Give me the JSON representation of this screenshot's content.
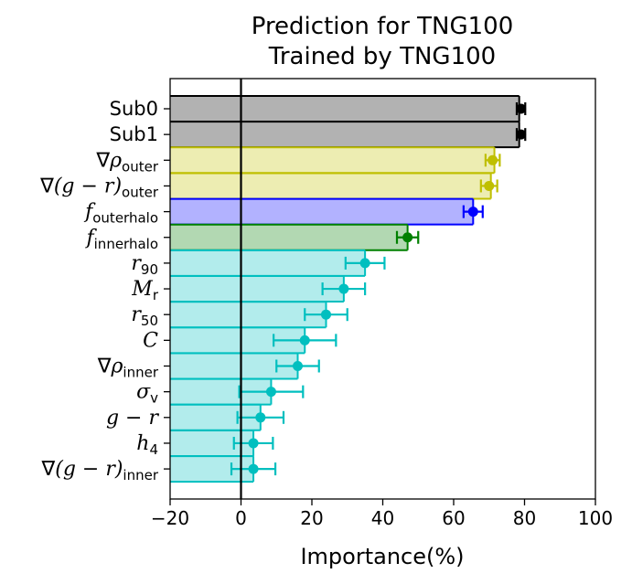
{
  "chart_data": {
    "type": "bar",
    "orientation": "horizontal",
    "title": [
      "Prediction for TNG100",
      "Trained by TNG100"
    ],
    "xlabel": "Importance(%)",
    "ylabel": "",
    "xlim": [
      -20,
      100
    ],
    "xticks": [
      -20,
      0,
      20,
      40,
      60,
      80,
      100
    ],
    "xtick_labels": [
      "−20",
      "0",
      "20",
      "40",
      "60",
      "80",
      "100"
    ],
    "reference_line_x": 0,
    "grid": false,
    "colors": {
      "gray_face": "#b2b2b2",
      "gray_edge": "#000000",
      "gray_marker": "#000000",
      "yellow_face": "#ededb2",
      "yellow_edge": "#bfbf00",
      "yellow_marker": "#bfbf00",
      "blue_face": "#b2b2ff",
      "blue_edge": "#0000ff",
      "blue_marker": "#0000ff",
      "green_face": "#b2d8b2",
      "green_edge": "#008000",
      "green_marker": "#008000",
      "cyan_face": "#b2ecec",
      "cyan_edge": "#00bfbf",
      "cyan_marker": "#00bfbf"
    },
    "categories": [
      {
        "label": {
          "main": "Sub0"
        },
        "group": "gray",
        "value": 78.5,
        "point": 79,
        "err": 1.2
      },
      {
        "label": {
          "main": "Sub1"
        },
        "group": "gray",
        "value": 78.5,
        "point": 79,
        "err": 1.2
      },
      {
        "label": {
          "pre": "∇",
          "main": "ρ",
          "sub": "outer"
        },
        "group": "yellow",
        "value": 71.5,
        "point": 71,
        "err": 2
      },
      {
        "label": {
          "pre": "∇",
          "main": "(g − r)",
          "sub": "outer"
        },
        "group": "yellow",
        "value": 70.5,
        "point": 70,
        "err": 2.3
      },
      {
        "label": {
          "main": "f",
          "sub": "outerhalo"
        },
        "group": "blue",
        "value": 65.5,
        "point": 65.5,
        "err": 2.7
      },
      {
        "label": {
          "main": "f",
          "sub": "innerhalo"
        },
        "group": "green",
        "value": 47,
        "point": 47,
        "err": 3
      },
      {
        "label": {
          "main": "r",
          "sub": "90"
        },
        "group": "cyan",
        "value": 35,
        "point": 35,
        "err": 5.5
      },
      {
        "label": {
          "main": "M",
          "sub": "r"
        },
        "group": "cyan",
        "value": 29,
        "point": 29,
        "err": 6
      },
      {
        "label": {
          "main": "r",
          "sub": "50"
        },
        "group": "cyan",
        "value": 24,
        "point": 24,
        "err": 6
      },
      {
        "label": {
          "main": "C"
        },
        "group": "cyan",
        "value": 18,
        "point": 18,
        "err": 8.8
      },
      {
        "label": {
          "pre": "∇",
          "main": "ρ",
          "sub": "inner"
        },
        "group": "cyan",
        "value": 16,
        "point": 16,
        "err": 6
      },
      {
        "label": {
          "main": "σ",
          "sub": "v"
        },
        "group": "cyan",
        "value": 8.5,
        "point": 8.5,
        "err": 9
      },
      {
        "label": {
          "main": "g − r"
        },
        "group": "cyan",
        "value": 5.5,
        "point": 5.5,
        "err": 6.5
      },
      {
        "label": {
          "main": "h",
          "sub": "4"
        },
        "group": "cyan",
        "value": 3.5,
        "point": 3.5,
        "err": 5.5
      },
      {
        "label": {
          "pre": "∇",
          "main": "(g − r)",
          "sub": "inner"
        },
        "group": "cyan",
        "value": 3.5,
        "point": 3.5,
        "err": 6.2
      }
    ]
  }
}
